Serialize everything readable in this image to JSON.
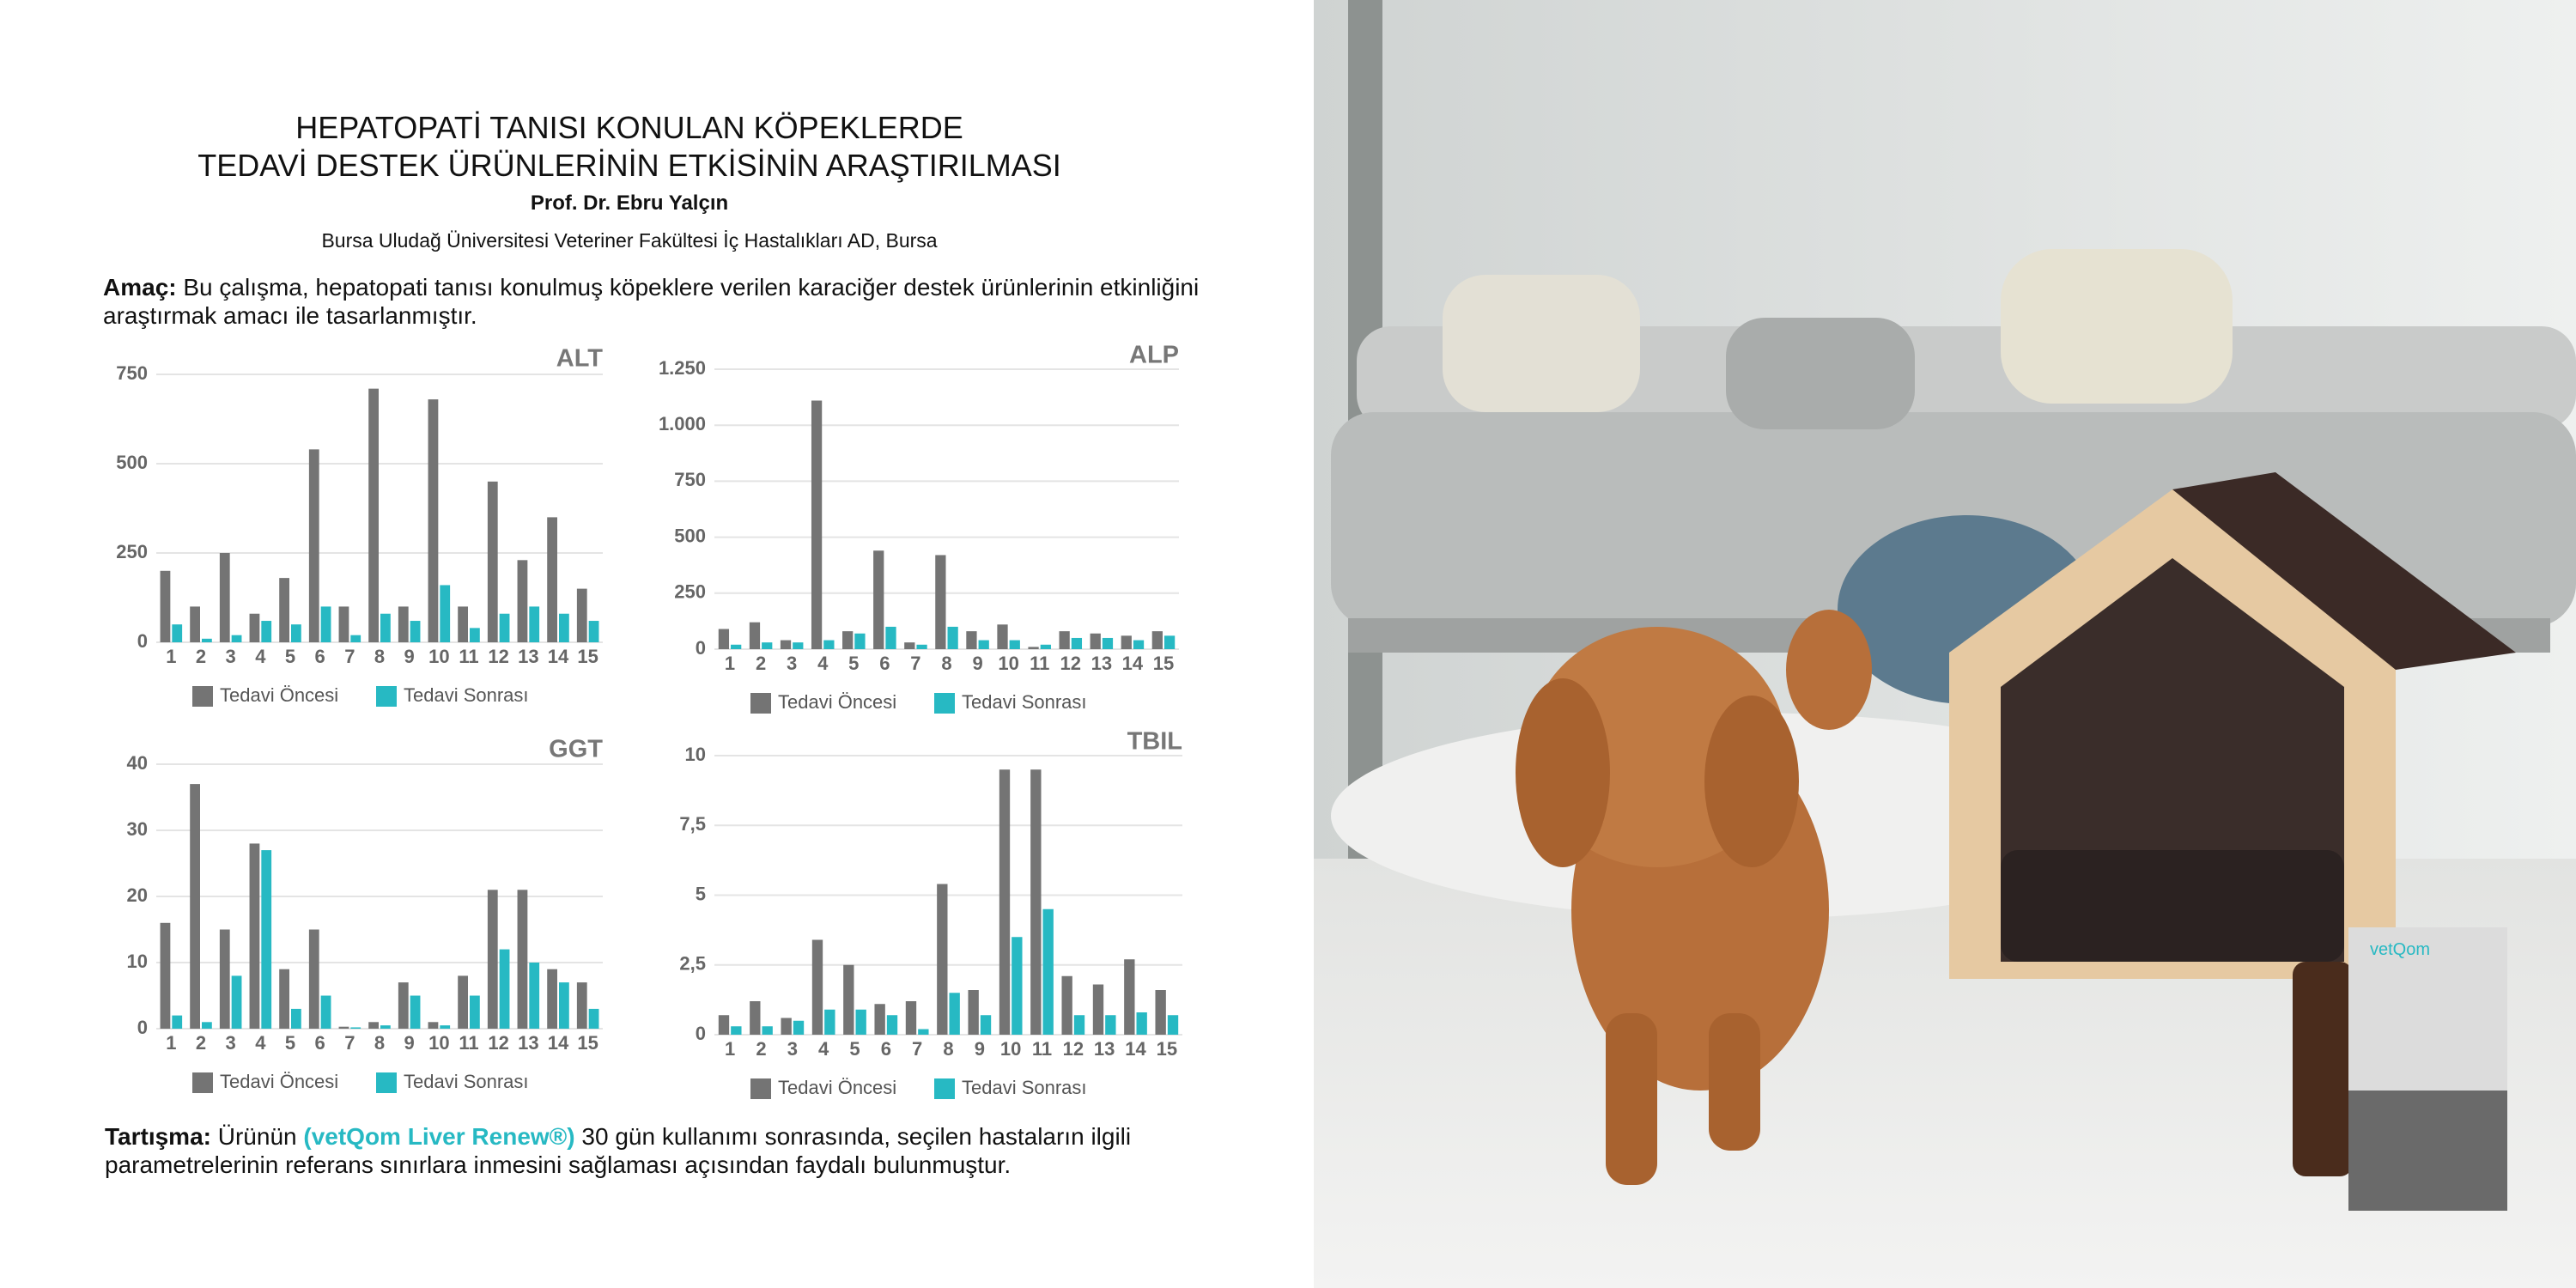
{
  "header": {
    "title": [
      "HEPATOPATİ TANISI KONULAN KÖPEKLERDE",
      "TEDAVİ DESTEK ÜRÜNLERİNİN ETKİSİNİN ARAŞTIRILMASI"
    ],
    "author": "Prof. Dr. Ebru Yalçın",
    "affiliation": "Bursa Uludağ Üniversitesi Veteriner Fakültesi İç Hastalıkları AD, Bursa"
  },
  "aim": {
    "label": "Amaç:",
    "text": "Bu çalışma, hepatopati tanısı konulmuş köpeklere verilen karaciğer destek ürünlerinin etkinliğini araştırmak amacı ile tasarlanmıştır."
  },
  "chart_data": [
    {
      "type": "bar",
      "title": "ALT",
      "categories": [
        "1",
        "2",
        "3",
        "4",
        "5",
        "6",
        "7",
        "8",
        "9",
        "10",
        "11",
        "12",
        "13",
        "14",
        "15"
      ],
      "series": [
        {
          "name": "Tedavi Öncesi",
          "color": "#747474",
          "values": [
            200,
            100,
            250,
            80,
            180,
            540,
            100,
            710,
            100,
            680,
            100,
            450,
            230,
            350,
            150
          ]
        },
        {
          "name": "Tedavi Sonrası",
          "color": "#27b9c3",
          "values": [
            50,
            10,
            20,
            60,
            50,
            100,
            20,
            80,
            60,
            160,
            40,
            80,
            100,
            80,
            60
          ]
        }
      ],
      "ylim": [
        0,
        750
      ],
      "yticks": [
        0,
        250,
        500,
        750
      ],
      "grid": true,
      "legend": "bottom"
    },
    {
      "type": "bar",
      "title": "ALP",
      "categories": [
        "1",
        "2",
        "3",
        "4",
        "5",
        "6",
        "7",
        "8",
        "9",
        "10",
        "11",
        "12",
        "13",
        "14",
        "15"
      ],
      "series": [
        {
          "name": "Tedavi Öncesi",
          "color": "#747474",
          "values": [
            90,
            120,
            40,
            1110,
            80,
            440,
            30,
            420,
            80,
            110,
            10,
            80,
            70,
            60,
            80
          ]
        },
        {
          "name": "Tedavi Sonrası",
          "color": "#27b9c3",
          "values": [
            20,
            30,
            30,
            40,
            70,
            100,
            20,
            100,
            40,
            40,
            20,
            50,
            50,
            40,
            60
          ]
        }
      ],
      "ylim": [
        0,
        1250
      ],
      "yticks": [
        0,
        250,
        500,
        750,
        {
          "value": 1000,
          "label": "1.000"
        },
        {
          "value": 1250,
          "label": "1.250"
        }
      ],
      "grid": true,
      "legend": "bottom"
    },
    {
      "type": "bar",
      "title": "GGT",
      "categories": [
        "1",
        "2",
        "3",
        "4",
        "5",
        "6",
        "7",
        "8",
        "9",
        "10",
        "11",
        "12",
        "13",
        "14",
        "15"
      ],
      "series": [
        {
          "name": "Tedavi Öncesi",
          "color": "#747474",
          "values": [
            16,
            37,
            15,
            28,
            9,
            15,
            0.3,
            1,
            7,
            1,
            8,
            21,
            21,
            9,
            7
          ]
        },
        {
          "name": "Tedavi Sonrası",
          "color": "#27b9c3",
          "values": [
            2,
            1,
            8,
            27,
            3,
            5,
            0.2,
            0.5,
            5,
            0.5,
            5,
            12,
            10,
            7,
            3
          ]
        }
      ],
      "ylim": [
        0,
        40
      ],
      "yticks": [
        0,
        10,
        20,
        30,
        40
      ],
      "grid": true,
      "legend": "bottom"
    },
    {
      "type": "bar",
      "title": "TBIL",
      "categories": [
        "1",
        "2",
        "3",
        "4",
        "5",
        "6",
        "7",
        "8",
        "9",
        "10",
        "11",
        "12",
        "13",
        "14",
        "15"
      ],
      "series": [
        {
          "name": "Tedavi Öncesi",
          "color": "#747474",
          "values": [
            0.7,
            1.2,
            0.6,
            3.4,
            2.5,
            1.1,
            1.2,
            5.4,
            1.6,
            9.5,
            9.5,
            2.1,
            1.8,
            2.7,
            1.6
          ]
        },
        {
          "name": "Tedavi Sonrası",
          "color": "#27b9c3",
          "values": [
            0.3,
            0.3,
            0.5,
            0.9,
            0.9,
            0.7,
            0.2,
            1.5,
            0.7,
            3.5,
            4.5,
            0.7,
            0.7,
            0.8,
            0.7
          ]
        }
      ],
      "ylim": [
        0,
        10
      ],
      "yticks": [
        0,
        {
          "value": 2.5,
          "label": "2,5"
        },
        5,
        {
          "value": 7.5,
          "label": "7,5"
        },
        10
      ],
      "grid": true,
      "legend": "bottom"
    }
  ],
  "discussion": {
    "label": "Tartışma:",
    "before": "Ürünün",
    "product": "(vetQom Liver Renew®)",
    "after": "30 gün kullanımı sonrasında, seçilen hastaların ilgili parametrelerinin referans sınırlara inmesini sağlaması açısından faydalı bulunmuştur."
  },
  "photo": {
    "brand": "vetQom"
  }
}
